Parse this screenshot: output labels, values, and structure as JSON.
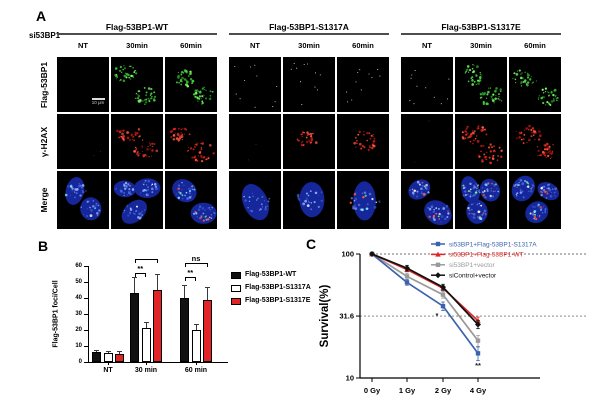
{
  "figure": {
    "panel_a": {
      "label": "A",
      "si_label": "si53BP1",
      "row_labels": [
        "Flag-53BP1",
        "γ-H2AX",
        "Merge"
      ],
      "scale_bar": "10 μm",
      "groups": [
        {
          "title": "Flag-53BP1-WT",
          "columns": [
            "NT",
            "30min",
            "60min"
          ],
          "foci": {
            "flag": [
              "none",
              "high",
              "high"
            ],
            "h2ax": [
              "trace",
              "high",
              "high"
            ],
            "merge_nuclei": [
              2,
              3,
              2
            ],
            "merge_speckle": [
              "low",
              "low",
              "high"
            ]
          }
        },
        {
          "title": "Flag-53BP1-S1317A",
          "columns": [
            "NT",
            "30min",
            "60min"
          ],
          "foci": {
            "flag": [
              "sparse",
              "sparse",
              "sparse"
            ],
            "h2ax": [
              "trace",
              "high1",
              "high1"
            ],
            "merge_nuclei": [
              1,
              1,
              1
            ],
            "merge_speckle": [
              "low",
              "low",
              "high"
            ]
          }
        },
        {
          "title": "Flag-53BP1-S1317E",
          "columns": [
            "NT",
            "30min",
            "60min"
          ],
          "foci": {
            "flag": [
              "sparse",
              "high",
              "high"
            ],
            "h2ax": [
              "trace",
              "high",
              "high"
            ],
            "merge_nuclei": [
              2,
              3,
              3
            ],
            "merge_speckle": [
              "high",
              "high",
              "high"
            ]
          }
        }
      ]
    },
    "panel_b_label": "B",
    "panel_c_label": "C"
  },
  "chart_data": [
    {
      "type": "bar",
      "title": "",
      "ylabel": "Flag-53BP1 foci/Cell",
      "ylim": [
        0,
        60
      ],
      "yticks": [
        0,
        10,
        20,
        30,
        40,
        50,
        60
      ],
      "categories": [
        "NT",
        "30 min",
        "60 min"
      ],
      "series": [
        {
          "name": "Flag-53BP1-WT",
          "color": "#111111",
          "values": [
            6,
            43,
            40
          ],
          "errors": [
            1.5,
            10,
            8
          ]
        },
        {
          "name": "Flag-53BP1-S1317A",
          "color": "#ffffff",
          "values": [
            5.5,
            21,
            20
          ],
          "errors": [
            1.5,
            4,
            4
          ]
        },
        {
          "name": "Flag-53BP1-S1317E",
          "color": "#e02427",
          "values": [
            5,
            45,
            39
          ],
          "errors": [
            2,
            10,
            8
          ]
        }
      ],
      "significance": [
        {
          "category": "30 min",
          "from": 0,
          "to": 1,
          "label": "**",
          "level": 1
        },
        {
          "category": "30 min",
          "from": 0,
          "to": 2,
          "label": "",
          "level": 2
        },
        {
          "category": "60 min",
          "from": 0,
          "to": 1,
          "label": "**",
          "level": 1
        },
        {
          "category": "60 min",
          "from": 0,
          "to": 2,
          "label": "ns",
          "level": 2
        }
      ],
      "legend_position": "right"
    },
    {
      "type": "line",
      "title": "",
      "ylabel": "Survival(%)",
      "yscale": "log",
      "yticks": [
        "100",
        "31.6",
        "10"
      ],
      "ytick_values": [
        100,
        31.6,
        10
      ],
      "x_labels": [
        "0 Gy",
        "1 Gy",
        "2 Gy",
        "4 Gy"
      ],
      "dashed_lines": [
        100,
        31.6
      ],
      "series": [
        {
          "name": "si53BP1+Flag-53BP1-S1317A",
          "color": "#3a63ad",
          "marker": "square",
          "values": [
            100,
            59,
            38,
            15.8
          ],
          "errors": [
            1.5,
            3,
            3,
            2
          ]
        },
        {
          "name": "si53BP1+Flag-53BP1-WT",
          "color": "#e02427",
          "marker": "triangle",
          "values": [
            100,
            75,
            53,
            29
          ],
          "errors": [
            1.5,
            3,
            2,
            2
          ]
        },
        {
          "name": "si53BP1+vector",
          "color": "#9a9a9a",
          "marker": "square",
          "values": [
            100,
            66,
            47,
            20
          ],
          "errors": [
            1.5,
            4,
            3,
            2
          ]
        },
        {
          "name": "siControl+vector",
          "color": "#111111",
          "marker": "diamond",
          "values": [
            100,
            77,
            54,
            27
          ],
          "errors": [
            1.5,
            4,
            3,
            2
          ]
        }
      ],
      "annotations": [
        {
          "text": "*",
          "at": "2 Gy"
        },
        {
          "text": "**",
          "at": "4 Gy"
        }
      ],
      "legend_position": "top-right"
    }
  ]
}
